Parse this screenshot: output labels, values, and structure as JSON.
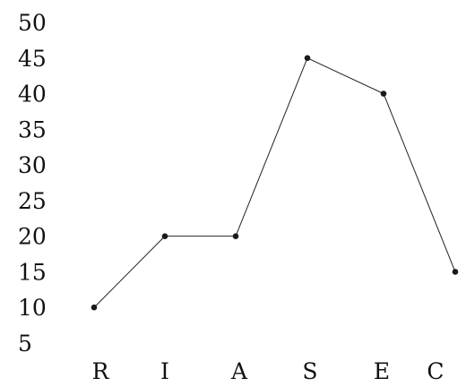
{
  "chart_data": {
    "type": "line",
    "title": "",
    "xlabel": "",
    "ylabel": "",
    "categories": [
      "R",
      "I",
      "A",
      "S",
      "E",
      "C"
    ],
    "series": [
      {
        "values": [
          10,
          20,
          20,
          45,
          40,
          15
        ]
      }
    ],
    "ylim": [
      5,
      50
    ],
    "yticks": [
      "5",
      "10",
      "15",
      "20",
      "25",
      "30",
      "35",
      "40",
      "45",
      "50"
    ],
    "grid": false,
    "legend": "none",
    "colors": {
      "line": "#222222",
      "marker": "#1a1a1a",
      "text": "#111111"
    }
  }
}
